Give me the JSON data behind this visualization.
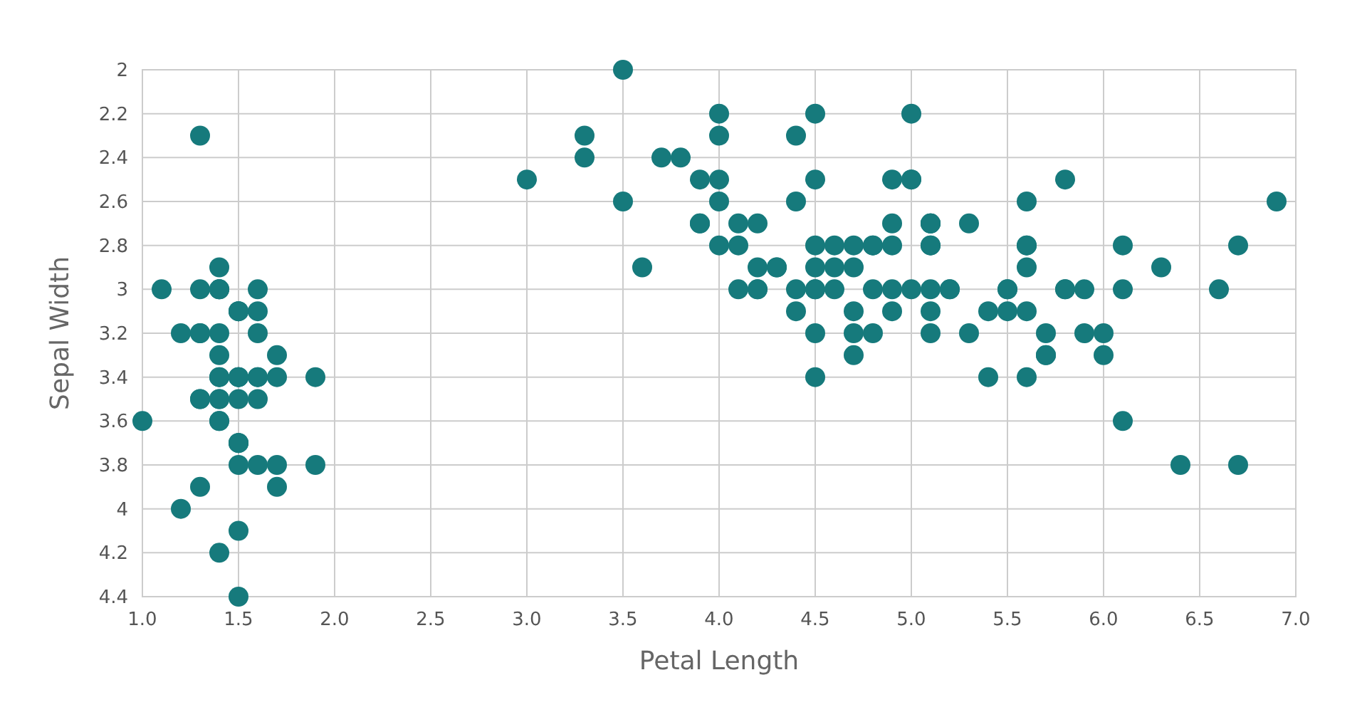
{
  "chart_data": {
    "type": "scatter",
    "xlabel": "Petal Length",
    "ylabel": "Sepal Width",
    "xlim": [
      1,
      7
    ],
    "ylim": [
      4.4,
      2
    ],
    "xticks": [
      {
        "value": 1,
        "label": "1.0"
      },
      {
        "value": 1.5,
        "label": "1.5"
      },
      {
        "value": 2,
        "label": "2.0"
      },
      {
        "value": 2.5,
        "label": "2.5"
      },
      {
        "value": 3,
        "label": "3.0"
      },
      {
        "value": 3.5,
        "label": "3.5"
      },
      {
        "value": 4,
        "label": "4.0"
      },
      {
        "value": 4.5,
        "label": "4.5"
      },
      {
        "value": 5,
        "label": "5.0"
      },
      {
        "value": 5.5,
        "label": "5.5"
      },
      {
        "value": 6,
        "label": "6.0"
      },
      {
        "value": 6.5,
        "label": "6.5"
      },
      {
        "value": 7,
        "label": "7.0"
      }
    ],
    "yticks": [
      2,
      2.2,
      2.4,
      2.6,
      2.8,
      3,
      3.2,
      3.4,
      3.6,
      3.8,
      4,
      4.2,
      4.4
    ],
    "grid": true,
    "marker": "circle",
    "series": [
      {
        "color": "#167a7c",
        "x": [
          1.4,
          1.4,
          1.3,
          1.5,
          1.4,
          1.7,
          1.4,
          1.5,
          1.4,
          1.5,
          1.5,
          1.6,
          1.4,
          1.1,
          1.2,
          1.5,
          1.3,
          1.4,
          1.7,
          1.5,
          1.7,
          1.5,
          1.0,
          1.7,
          1.9,
          1.6,
          1.6,
          1.5,
          1.4,
          1.6,
          1.6,
          1.5,
          1.5,
          1.4,
          1.5,
          1.2,
          1.3,
          1.4,
          1.3,
          1.5,
          1.3,
          1.3,
          1.3,
          1.6,
          1.9,
          1.4,
          1.6,
          1.4,
          1.5,
          1.4,
          4.7,
          4.5,
          4.9,
          4.0,
          4.6,
          4.5,
          4.7,
          3.3,
          4.6,
          3.9,
          3.5,
          4.2,
          4.0,
          4.7,
          3.6,
          4.4,
          4.5,
          4.1,
          4.5,
          3.9,
          4.8,
          4.0,
          4.9,
          4.7,
          4.3,
          4.4,
          4.8,
          5.0,
          4.5,
          3.5,
          3.8,
          3.7,
          3.9,
          5.1,
          4.5,
          4.5,
          4.7,
          4.4,
          4.1,
          4.0,
          4.4,
          4.6,
          4.0,
          3.3,
          4.2,
          4.2,
          4.2,
          4.3,
          3.0,
          4.1,
          6.0,
          5.1,
          5.9,
          5.6,
          5.8,
          6.6,
          4.5,
          6.3,
          5.8,
          6.1,
          5.1,
          5.3,
          5.5,
          5.0,
          5.1,
          5.3,
          5.5,
          6.7,
          6.9,
          5.0,
          5.7,
          4.9,
          6.7,
          4.9,
          5.7,
          6.0,
          4.8,
          4.9,
          5.6,
          5.8,
          6.1,
          6.4,
          5.6,
          5.1,
          5.6,
          6.1,
          5.6,
          5.5,
          4.8,
          5.4,
          5.6,
          5.1,
          5.1,
          5.9,
          5.7,
          5.2,
          5.0,
          5.2,
          5.4,
          5.1
        ],
        "values": [
          3.5,
          3.0,
          3.2,
          3.1,
          3.6,
          3.9,
          3.4,
          3.4,
          2.9,
          3.1,
          3.7,
          3.4,
          3.0,
          3.0,
          4.0,
          4.4,
          3.9,
          3.5,
          3.8,
          3.8,
          3.4,
          3.7,
          3.6,
          3.3,
          3.4,
          3.0,
          3.4,
          3.5,
          3.4,
          3.2,
          3.1,
          3.4,
          4.1,
          4.2,
          3.1,
          3.2,
          3.5,
          3.6,
          3.0,
          3.4,
          3.5,
          2.3,
          3.2,
          3.5,
          3.8,
          3.0,
          3.8,
          3.2,
          3.7,
          3.3,
          3.2,
          3.2,
          3.1,
          2.3,
          2.8,
          2.8,
          3.3,
          2.4,
          2.9,
          2.7,
          2.0,
          3.0,
          2.2,
          2.9,
          2.9,
          3.1,
          3.0,
          2.7,
          2.2,
          2.5,
          3.2,
          2.8,
          2.5,
          2.8,
          2.9,
          3.0,
          2.8,
          3.0,
          2.9,
          2.6,
          2.4,
          2.4,
          2.7,
          2.7,
          3.0,
          3.4,
          3.1,
          2.3,
          3.0,
          2.5,
          2.6,
          3.0,
          2.6,
          2.3,
          2.7,
          3.0,
          2.9,
          2.9,
          2.5,
          2.8,
          3.3,
          2.7,
          3.0,
          2.9,
          3.0,
          3.0,
          2.5,
          2.9,
          2.5,
          3.6,
          3.2,
          2.7,
          3.0,
          2.5,
          2.8,
          3.2,
          3.0,
          3.8,
          2.6,
          2.2,
          3.2,
          2.8,
          2.8,
          2.7,
          3.3,
          3.2,
          2.8,
          3.0,
          2.8,
          3.0,
          2.8,
          3.8,
          2.8,
          2.8,
          2.6,
          3.0,
          3.4,
          3.1,
          3.0,
          3.1,
          3.1,
          3.1,
          2.7,
          3.2,
          3.3,
          3.0,
          2.5,
          3.0,
          3.4,
          3.0
        ]
      }
    ]
  }
}
